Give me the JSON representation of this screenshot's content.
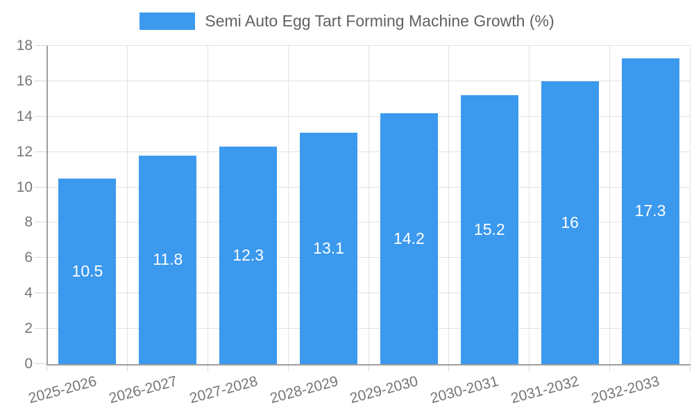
{
  "chart_data": {
    "type": "bar",
    "title": "",
    "series_name": "Semi Auto Egg Tart Forming Machine Growth (%)",
    "categories": [
      "2025-2026",
      "2026-2027",
      "2027-2028",
      "2028-2029",
      "2029-2030",
      "2030-2031",
      "2031-2032",
      "2032-2033"
    ],
    "values": [
      10.5,
      11.8,
      12.3,
      13.1,
      14.2,
      15.2,
      16,
      17.3
    ],
    "value_labels": [
      "10.5",
      "11.8",
      "12.3",
      "13.1",
      "14.2",
      "15.2",
      "16",
      "17.3"
    ],
    "xlabel": "",
    "ylabel": "",
    "ylim": [
      0,
      18
    ],
    "yticks": [
      0,
      2,
      4,
      6,
      8,
      10,
      12,
      14,
      16,
      18
    ],
    "legend_position": "top-center",
    "grid": true,
    "colors": {
      "bar": "#3b99ee",
      "grid": "#e2e2e2",
      "tick": "#d6d6d6",
      "axis": "#9e9e9e",
      "axis_text": "#757575",
      "legend_text": "#616161",
      "value_text": "#ffffff",
      "background": "#ffffff"
    }
  }
}
